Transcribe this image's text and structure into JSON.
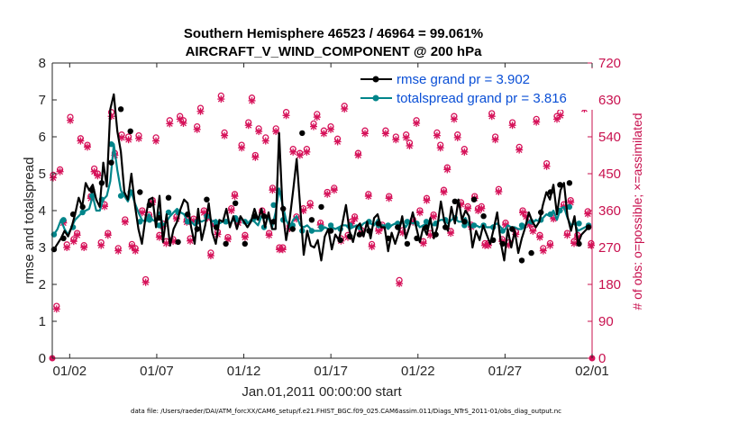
{
  "chart_data": {
    "type": "line",
    "title_line1": "Southern Hemisphere 46523 / 46964 = 99.061%",
    "title_line2": "AIRCRAFT_V_WIND_COMPONENT @ 200 hPa",
    "xlabel": "Jan.01,2011 00:00:00 start",
    "ylabel_left": "rmse and totalspread",
    "ylabel_right": "# of obs: o=possible; ×=assimilated",
    "xlim": [
      0,
      31
    ],
    "ylim_left": [
      0,
      8
    ],
    "ylim_right": [
      0,
      720
    ],
    "x_ticks": [
      {
        "value": 1,
        "label": "01/02"
      },
      {
        "value": 6,
        "label": "01/07"
      },
      {
        "value": 11,
        "label": "01/12"
      },
      {
        "value": 16,
        "label": "01/17"
      },
      {
        "value": 21,
        "label": "01/22"
      },
      {
        "value": 26,
        "label": "01/27"
      },
      {
        "value": 31,
        "label": "02/01"
      }
    ],
    "y_ticks_left": [
      "0",
      "1",
      "2",
      "3",
      "4",
      "5",
      "6",
      "7",
      "8"
    ],
    "y_ticks_right": [
      "0",
      "90",
      "180",
      "270",
      "360",
      "450",
      "540",
      "630",
      "720"
    ],
    "legend": [
      {
        "name": "rmse",
        "label": "rmse grand pr = 3.902",
        "color": "#000000"
      },
      {
        "name": "totalspread",
        "label": "totalspread grand pr = 3.816",
        "color": "#00858a"
      }
    ],
    "series": [
      {
        "name": "rmse",
        "color": "#000000",
        "values": [
          2.95,
          3.1,
          3.25,
          3.45,
          3.3,
          3.55,
          3.9,
          4.35,
          4.1,
          4.75,
          4.55,
          4.7,
          4.3,
          4.1,
          5.3,
          4.65,
          6.75,
          7.15,
          6.15,
          5.6,
          4.5,
          4.3,
          5.0,
          4.15,
          3.5,
          3.1,
          3.8,
          4.3,
          4.35,
          3.55,
          4.4,
          3.15,
          3.9,
          3.05,
          3.5,
          3.7,
          4.05,
          4.3,
          4.2,
          3.55,
          3.1,
          4.05,
          3.2,
          3.6,
          4.2,
          3.4,
          3.1,
          3.75,
          3.7,
          4.05,
          3.55,
          3.85,
          3.5,
          3.85,
          3.7,
          3.55,
          3.7,
          4.05,
          3.75,
          4.05,
          3.55,
          3.95,
          3.5,
          3.5,
          6.1,
          4.0,
          3.2,
          3.75,
          4.55,
          5.4,
          4.1,
          2.8,
          3.45,
          3.05,
          3.0,
          3.2,
          2.65,
          3.3,
          3.5,
          2.95,
          3.35,
          3.2,
          3.65,
          4.15,
          3.45,
          3.15,
          3.55,
          3.65,
          3.3,
          3.7,
          3.25,
          3.8,
          3.9,
          3.55,
          3.55,
          2.9,
          3.4,
          3.1,
          3.4,
          3.85,
          3.25,
          3.55,
          3.95,
          3.55,
          3.15,
          3.55,
          3.35,
          3.8,
          3.25,
          3.55,
          4.25,
          3.7,
          3.45,
          4.1,
          3.65,
          4.3,
          3.75,
          4.0,
          3.85,
          3.0,
          3.45,
          3.2,
          3.6,
          3.35,
          3.1,
          3.5,
          3.95,
          3.15,
          2.65,
          3.5,
          3.0,
          3.45,
          2.85,
          3.25,
          3.55,
          3.95,
          3.7,
          3.55,
          3.7,
          4.15,
          4.5,
          4.3,
          4.7,
          3.9,
          4.55,
          4.75,
          3.85,
          3.45,
          3.85,
          3.1,
          3.35,
          3.45,
          3.55
        ],
        "markers": [
          2.95,
          3.25,
          3.9,
          4.1,
          4.55,
          4.75,
          5.3,
          6.75,
          6.15,
          4.5,
          4.15,
          3.8,
          4.35,
          3.15,
          3.9,
          3.5,
          4.3,
          3.55,
          3.1,
          4.2,
          3.1,
          3.85,
          3.85,
          3.7,
          4.05,
          3.5,
          6.1,
          3.75,
          4.1,
          3.45,
          3.2,
          3.3,
          3.35,
          3.45,
          3.65,
          3.25,
          3.55,
          3.1,
          3.25,
          3.55,
          3.35,
          3.55,
          4.25,
          3.7,
          4.3,
          3.85,
          3.2,
          3.1,
          3.5,
          2.65,
          2.85,
          3.95,
          4.5,
          4.7,
          4.75,
          3.1,
          3.55
        ]
      },
      {
        "name": "totalspread",
        "color": "#00858a",
        "values": [
          3.35,
          3.5,
          3.75,
          3.5,
          3.35,
          3.55,
          3.75,
          3.85,
          3.95,
          4.0,
          4.05,
          4.4,
          4.0,
          4.0,
          4.3,
          4.4,
          4.8,
          5.8,
          5.1,
          4.55,
          4.4,
          4.25,
          4.5,
          4.2,
          3.95,
          3.75,
          3.7,
          3.9,
          3.75,
          3.7,
          3.95,
          3.6,
          3.7,
          3.85,
          3.95,
          4.05,
          3.95,
          3.9,
          3.7,
          3.7,
          3.6,
          3.75,
          3.7,
          3.75,
          3.85,
          3.7,
          3.75,
          3.65,
          3.7,
          3.75,
          3.65,
          3.75,
          3.7,
          3.8,
          3.7,
          3.65,
          3.75,
          3.7,
          3.6,
          3.85,
          3.8,
          3.8,
          3.55,
          3.95,
          4.6,
          4.15,
          3.75,
          3.55,
          3.75,
          3.85,
          3.6,
          3.55,
          3.6,
          3.5,
          3.45,
          3.45,
          3.45,
          3.55,
          3.5,
          3.55,
          3.5,
          3.55,
          3.6,
          3.6,
          3.5,
          3.55,
          3.6,
          3.55,
          3.65,
          3.7,
          3.65,
          3.6,
          3.75,
          3.6,
          3.6,
          3.5,
          3.6,
          3.65,
          3.55,
          3.7,
          3.55,
          3.7,
          3.65,
          3.7,
          3.55,
          3.6,
          3.65,
          3.65,
          3.6,
          3.7,
          3.75,
          3.75,
          3.65,
          3.75,
          3.8,
          3.7,
          3.7,
          3.8,
          3.6,
          3.55,
          3.6,
          3.55,
          3.6,
          3.55,
          3.55,
          3.6,
          3.65,
          3.55,
          3.45,
          3.6,
          3.55,
          3.55,
          3.5,
          3.5,
          3.6,
          3.7,
          3.65,
          3.75,
          3.7,
          3.8,
          3.9,
          3.85,
          4.0,
          3.75,
          4.05,
          4.1,
          3.8,
          3.6,
          3.65,
          3.45,
          3.5,
          3.55,
          3.6
        ],
        "markers": [
          3.35,
          3.75,
          3.55,
          3.95,
          4.4,
          4.3,
          5.8,
          4.4,
          4.5,
          3.7,
          3.75,
          3.6,
          3.95,
          3.95,
          3.7,
          3.7,
          3.85,
          3.65,
          3.7,
          3.8,
          3.7,
          3.8,
          3.55,
          4.15,
          3.75,
          3.6,
          3.45,
          3.45,
          3.55,
          3.6,
          3.5,
          3.6,
          3.55,
          3.7,
          3.6,
          3.6,
          3.65,
          3.7,
          3.65,
          3.7,
          3.65,
          3.75,
          3.8,
          3.6,
          3.6,
          3.6,
          3.55,
          3.45,
          3.5,
          3.6,
          3.7,
          3.75,
          3.9,
          4.0,
          4.1,
          3.65,
          3.6
        ]
      }
    ],
    "obs_possible": [
      447,
      127,
      460,
      335,
      277,
      588,
      290,
      305,
      536,
      275,
      520,
      395,
      462,
      450,
      282,
      375,
      305,
      600,
      500,
      268,
      545,
      338,
      540,
      278,
      268,
      543,
      360,
      192,
      350,
      385,
      538,
      300,
      328,
      285,
      580,
      290,
      345,
      590,
      580,
      337,
      292,
      340,
      565,
      610,
      360,
      347,
      257,
      330,
      308,
      640,
      550,
      295,
      365,
      400,
      335,
      520,
      300,
      575,
      635,
      495,
      560,
      360,
      538,
      305,
      415,
      560,
      270,
      270,
      600,
      322,
      510,
      345,
      500,
      365,
      510,
      378,
      572,
      595,
      330,
      555,
      405,
      565,
      415,
      535,
      292,
      615,
      300,
      333,
      345,
      500,
      312,
      555,
      400,
      278,
      640,
      315,
      325,
      555,
      395,
      630,
      540,
      190,
      312,
      545,
      525,
      338,
      580,
      360,
      285,
      390,
      305,
      350,
      550,
      520,
      410,
      465,
      310,
      590,
      545,
      380,
      510,
      370,
      325,
      395,
      365,
      370,
      280,
      280,
      597,
      540,
      412,
      290,
      330,
      282,
      575,
      308,
      515,
      360,
      350,
      330,
      315,
      583,
      300,
      268,
      475,
      280,
      345,
      590,
      600,
      375,
      305,
      385,
      285,
      300,
      650,
      615,
      358,
      280
    ],
    "obs_assimilated": [
      440,
      120,
      455,
      330,
      270,
      580,
      285,
      300,
      530,
      270,
      515,
      390,
      455,
      445,
      275,
      370,
      300,
      590,
      495,
      262,
      538,
      332,
      533,
      272,
      262,
      536,
      355,
      185,
      345,
      380,
      530,
      295,
      322,
      280,
      572,
      285,
      340,
      583,
      573,
      332,
      286,
      335,
      558,
      602,
      355,
      342,
      250,
      325,
      302,
      632,
      543,
      290,
      360,
      395,
      330,
      513,
      295,
      568,
      628,
      490,
      553,
      355,
      530,
      300,
      410,
      553,
      265,
      265,
      592,
      316,
      503,
      340,
      495,
      360,
      503,
      372,
      565,
      588,
      325,
      548,
      400,
      558,
      410,
      528,
      286,
      608,
      295,
      328,
      340,
      495,
      306,
      548,
      395,
      272,
      632,
      310,
      320,
      548,
      390,
      622,
      533,
      182,
      306,
      538,
      518,
      332,
      573,
      355,
      280,
      385,
      300,
      345,
      543,
      513,
      405,
      460,
      305,
      583,
      538,
      375,
      503,
      365,
      320,
      390,
      360,
      365,
      275,
      275,
      590,
      533,
      406,
      285,
      325,
      276,
      568,
      302,
      508,
      355,
      345,
      325,
      310,
      576,
      295,
      262,
      468,
      275,
      340,
      583,
      592,
      370,
      300,
      380,
      280,
      295,
      642,
      608,
      352,
      275
    ]
  },
  "footnote": "data file: /Users/raeder/DAI/ATM_forcXX/CAM6_setup/f.e21.FHIST_BGC.f09_025.CAM6assim.011/Diags_NTrS_2011-01/obs_diag_output.nc"
}
